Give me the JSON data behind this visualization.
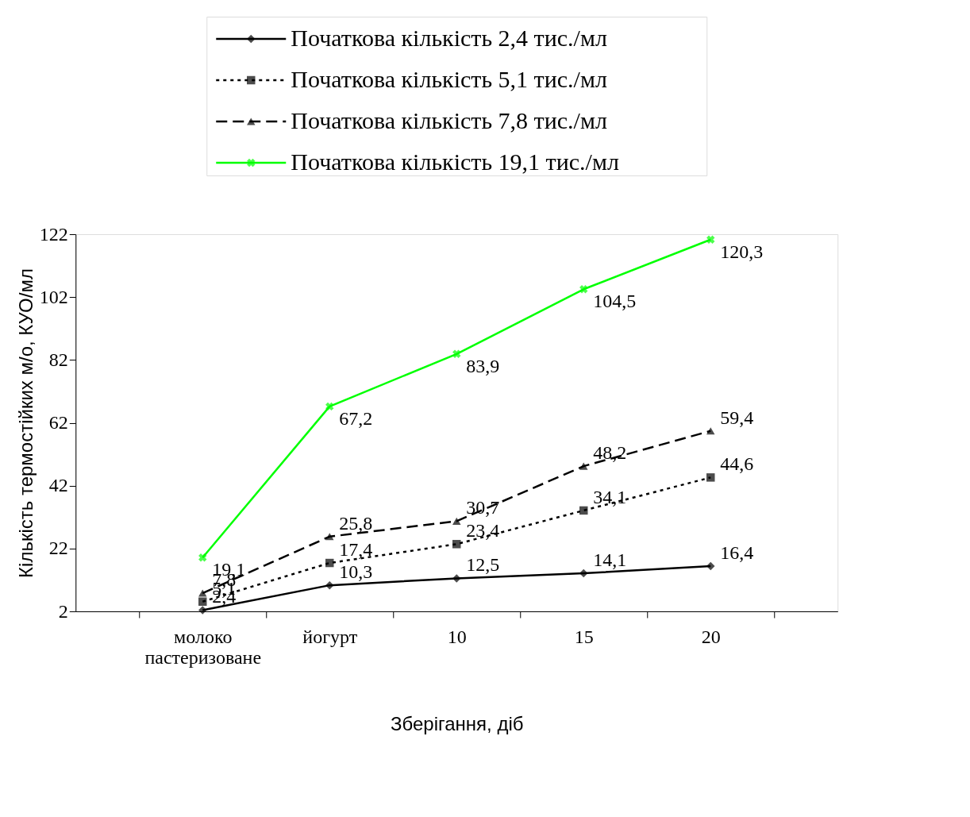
{
  "chart_data": {
    "type": "line",
    "xlabel": "Зберігання, діб",
    "ylabel": "Кількість термостійких м/о, КУО/мл",
    "categories": [
      "молоко пастеризоване",
      "йогурт",
      "10",
      "15",
      "20"
    ],
    "ylim": [
      2,
      122
    ],
    "yticks": [
      2,
      22,
      42,
      62,
      82,
      102,
      122
    ],
    "grid": false,
    "legend": "top",
    "series": [
      {
        "name": "Початкова кількість 2,4 тис./мл",
        "color": "#000000",
        "marker": "diamond",
        "line_style": "solid",
        "values": [
          2.4,
          10.3,
          12.5,
          14.1,
          16.4
        ],
        "value_labels": [
          "2,4",
          "10,3",
          "12,5",
          "14,1",
          "16,4"
        ]
      },
      {
        "name": "Початкова кількість 5,1 тис./мл",
        "color": "#000000",
        "marker": "square",
        "line_style": "dotted",
        "values": [
          5.1,
          17.4,
          23.4,
          34.1,
          44.6
        ],
        "value_labels": [
          "5,1",
          "17,4",
          "23,4",
          "34,1",
          "44,6"
        ]
      },
      {
        "name": "Початкова кількість 7,8 тис./мл",
        "color": "#000000",
        "marker": "triangle",
        "line_style": "dashed",
        "values": [
          7.8,
          25.8,
          30.7,
          48.2,
          59.4
        ],
        "value_labels": [
          "7,8",
          "25,8",
          "30,7",
          "48,2",
          "59,4"
        ]
      },
      {
        "name": "Початкова кількість 19,1 тис./мл",
        "color": "#00ff00",
        "marker": "cross",
        "line_style": "solid",
        "values": [
          19.1,
          67.2,
          83.9,
          104.5,
          120.3
        ],
        "value_labels": [
          "19,1",
          "67,2",
          "83,9",
          "104,5",
          "120,3"
        ]
      }
    ]
  }
}
